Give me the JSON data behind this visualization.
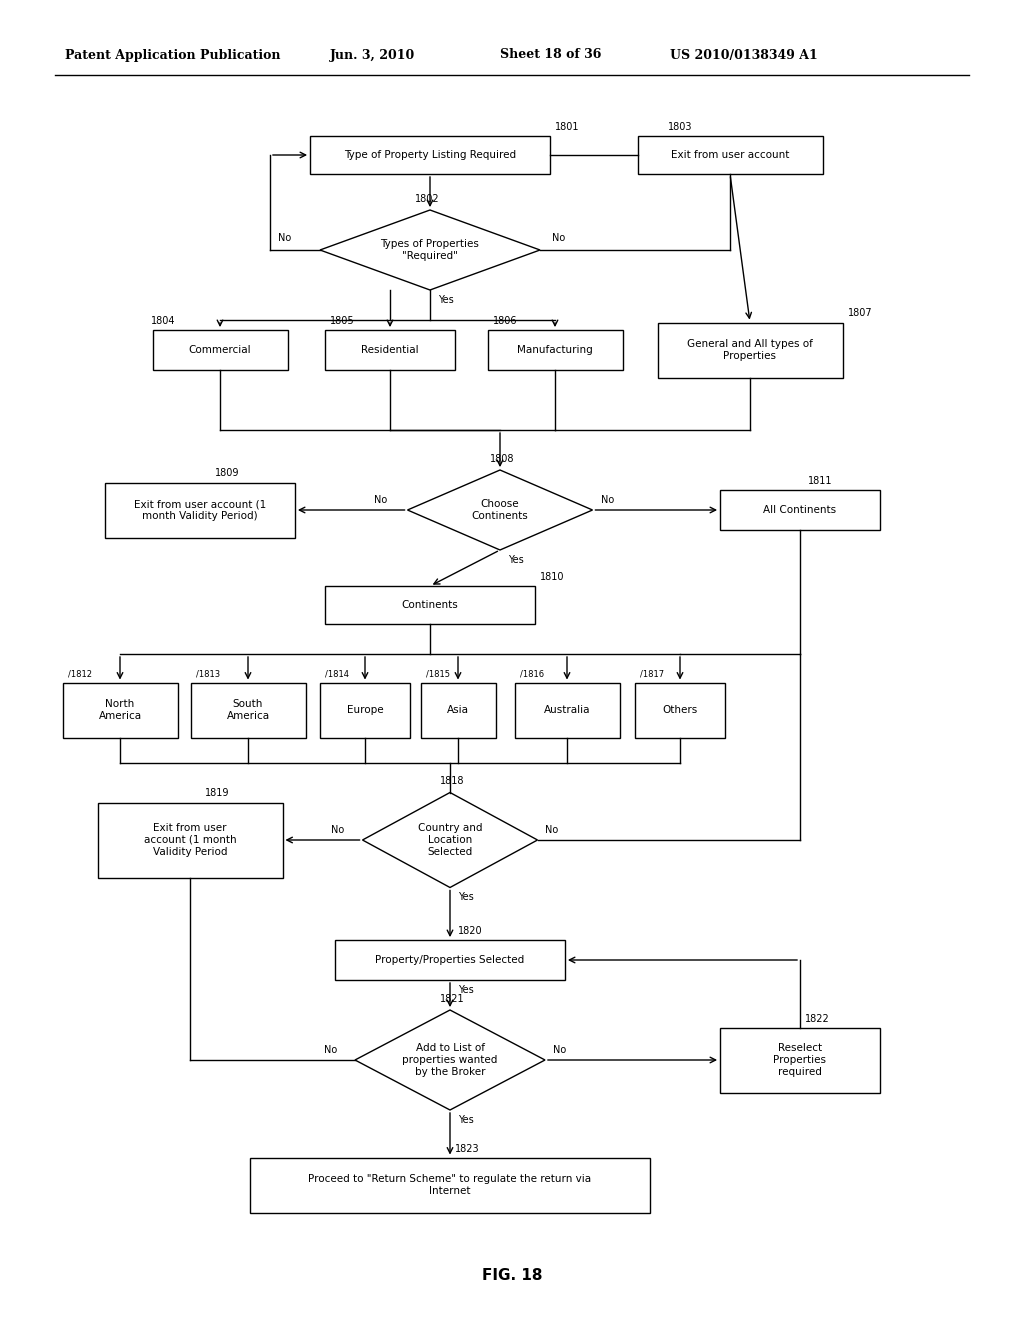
{
  "title_header": "Patent Application Publication",
  "title_date": "Jun. 3, 2010",
  "title_sheet": "Sheet 18 of 36",
  "title_patent": "US 2010/0138349 A1",
  "fig_label": "FIG. 18",
  "background_color": "#ffffff",
  "line_color": "#000000",
  "box_color": "#ffffff",
  "text_color": "#000000"
}
